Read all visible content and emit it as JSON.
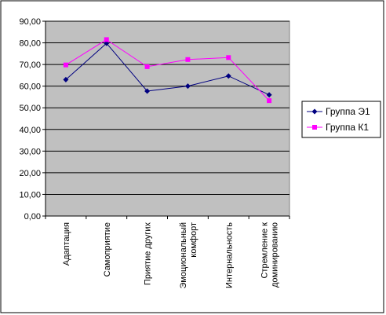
{
  "chart_data": {
    "type": "line",
    "categories": [
      [
        "Адаптация"
      ],
      [
        "Самоприятие"
      ],
      [
        "Приятие других"
      ],
      [
        "Эмоциональный",
        "комфорт"
      ],
      [
        "Интернальность"
      ],
      [
        "Стремление к",
        "доминированию"
      ]
    ],
    "ylim": [
      0,
      90
    ],
    "yticks": [
      "0,00",
      "10,00",
      "20,00",
      "30,00",
      "40,00",
      "50,00",
      "60,00",
      "70,00",
      "80,00",
      "90,00"
    ],
    "grid": true,
    "legend_position": "right",
    "plot_background": "#c0c0c0",
    "series": [
      {
        "name": "Группа Э1",
        "color": "#000080",
        "marker": "diamond",
        "values": [
          63.0,
          79.8,
          57.7,
          60.0,
          64.7,
          56.0
        ]
      },
      {
        "name": "Группа К1",
        "color": "#ff00ff",
        "marker": "square",
        "values": [
          69.8,
          81.5,
          69.0,
          72.3,
          73.2,
          53.3
        ]
      }
    ]
  }
}
